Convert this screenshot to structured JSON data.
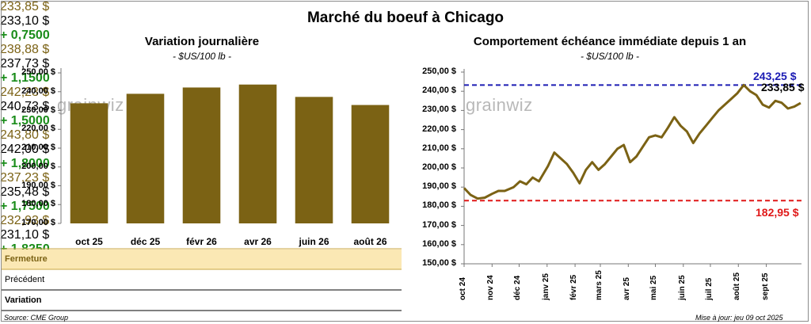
{
  "title": "Marché du boeuf à Chicago",
  "left": {
    "title": "Variation journalière",
    "subtitle": "- $US/100 lb -",
    "watermark": "grainwiz",
    "bar_color": "#7b6214",
    "y_ticks": [
      "250,00 $",
      "240,00 $",
      "230,00 $",
      "220,00 $",
      "210,00 $",
      "200,00 $",
      "190,00 $",
      "180,00 $",
      "170,00 $"
    ],
    "categories": [
      "oct 25",
      "déc 25",
      "févr 26",
      "avr 26",
      "juin 26",
      "août 26"
    ],
    "rows": [
      {
        "label": "Fermeture",
        "values": [
          "233,85 $",
          "238,88 $",
          "242,23 $",
          "243,80 $",
          "237,23 $",
          "232,93 $"
        ]
      },
      {
        "label": "Précédent",
        "values": [
          "233,10 $",
          "237,73 $",
          "240,73 $",
          "242,00 $",
          "235,48 $",
          "231,10 $"
        ]
      },
      {
        "label": "Variation",
        "values": [
          "+ 0,7500",
          "+ 1,1500",
          "+ 1,5000",
          "+ 1,8000",
          "+ 1,7500",
          "+ 1,8250"
        ]
      }
    ]
  },
  "right": {
    "title": "Comportement échéance immédiate depuis 1 an",
    "subtitle": "- $US/100 lb -",
    "watermark": "grainwiz",
    "line_color": "#7b6214",
    "high_label": "243,25 $",
    "last_label": "233,85 $",
    "low_label": "182,95 $",
    "y_ticks": [
      "250,00 $",
      "240,00 $",
      "230,00 $",
      "220,00 $",
      "210,00 $",
      "200,00 $",
      "190,00 $",
      "180,00 $",
      "170,00 $",
      "160,00 $",
      "150,00 $"
    ],
    "x_ticks": [
      "oct 24",
      "nov 24",
      "déc 24",
      "janv 25",
      "févr 25",
      "mars 25",
      "avr 25",
      "mai 25",
      "juin 25",
      "juil 25",
      "août 25",
      "sept 25"
    ]
  },
  "footer": {
    "source": "Source: CME Group",
    "updated": "Mise à jour: jeu 09 oct 2025"
  },
  "chart_data": [
    {
      "type": "bar",
      "title": "Variation journalière",
      "categories": [
        "oct 25",
        "déc 25",
        "févr 26",
        "avr 26",
        "juin 26",
        "août 26"
      ],
      "values": [
        233.85,
        238.88,
        242.23,
        243.8,
        237.23,
        232.93
      ],
      "ylim": [
        170,
        250
      ],
      "grid": false
    },
    {
      "type": "line",
      "title": "Comportement échéance immédiate depuis 1 an",
      "ylim": [
        150,
        250
      ],
      "grid": false,
      "x": [
        "2024-10-01",
        "2024-10-08",
        "2024-10-16",
        "2024-10-24",
        "2024-11-01",
        "2024-11-08",
        "2024-11-15",
        "2024-11-25",
        "2024-12-02",
        "2024-12-09",
        "2024-12-16",
        "2024-12-23",
        "2025-01-02",
        "2025-01-09",
        "2025-01-16",
        "2025-01-23",
        "2025-01-30",
        "2025-02-06",
        "2025-02-13",
        "2025-02-20",
        "2025-02-27",
        "2025-03-06",
        "2025-03-13",
        "2025-03-20",
        "2025-03-27",
        "2025-04-03",
        "2025-04-10",
        "2025-04-17",
        "2025-04-24",
        "2025-05-01",
        "2025-05-08",
        "2025-05-15",
        "2025-05-22",
        "2025-05-29",
        "2025-06-05",
        "2025-06-12",
        "2025-06-19",
        "2025-06-26",
        "2025-07-03",
        "2025-07-10",
        "2025-07-17",
        "2025-07-24",
        "2025-07-31",
        "2025-08-07",
        "2025-08-14",
        "2025-08-21",
        "2025-08-28",
        "2025-09-04",
        "2025-09-11",
        "2025-09-18",
        "2025-09-25",
        "2025-10-02",
        "2025-10-09"
      ],
      "series": [
        {
          "values": [
            189.5,
            186.0,
            184.0,
            184.5,
            186.5,
            188.0,
            188.0,
            190.0,
            193.0,
            191.5,
            195.0,
            193.0,
            201.0,
            208.0,
            205.0,
            202.0,
            197.5,
            192.0,
            199.0,
            203.0,
            199.0,
            202.0,
            206.0,
            210.0,
            212.0,
            203.0,
            206.0,
            211.0,
            216.0,
            217.0,
            216.0,
            221.0,
            226.5,
            222.0,
            219.0,
            213.0,
            218.0,
            222.0,
            226.0,
            230.0,
            233.0,
            236.0,
            239.0,
            243.25,
            240.0,
            238.0,
            233.0,
            231.5,
            235.0,
            234.0,
            231.0,
            232.0,
            233.85
          ]
        }
      ],
      "reference_lines": [
        {
          "label": "243,25 $",
          "value": 243.25,
          "color": "#1c1cb4"
        },
        {
          "label": "182,95 $",
          "value": 182.95,
          "color": "#e01818"
        }
      ]
    }
  ]
}
